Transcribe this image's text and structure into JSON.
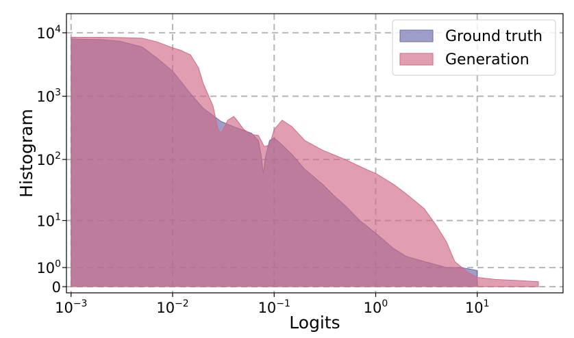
{
  "chart_data": {
    "type": "area",
    "title": "",
    "xlabel": "Logits",
    "ylabel": "Histogram",
    "x_scale": "log",
    "y_scale": "symlog",
    "xlim": [
      0.0009,
      70
    ],
    "ylim": [
      -0.25,
      20000
    ],
    "grid": true,
    "legend_position": "top-right",
    "x_ticks": [
      {
        "value": 0.001,
        "base": "10",
        "exp": "−3"
      },
      {
        "value": 0.01,
        "base": "10",
        "exp": "−2"
      },
      {
        "value": 0.1,
        "base": "10",
        "exp": "−1"
      },
      {
        "value": 1,
        "base": "10",
        "exp": "0"
      },
      {
        "value": 10,
        "base": "10",
        "exp": "1"
      }
    ],
    "y_ticks": [
      {
        "value": 0,
        "base": "0",
        "exp": ""
      },
      {
        "value": 1,
        "base": "10",
        "exp": "0"
      },
      {
        "value": 10,
        "base": "10",
        "exp": "1"
      },
      {
        "value": 100,
        "base": "10",
        "exp": "2"
      },
      {
        "value": 1000,
        "base": "10",
        "exp": "3"
      },
      {
        "value": 10000,
        "base": "10",
        "exp": "4"
      }
    ],
    "series": [
      {
        "name": "Ground truth",
        "color": "#6a6aaa",
        "opacity": 0.65,
        "points": [
          [
            0.001,
            8000
          ],
          [
            0.002,
            7800
          ],
          [
            0.003,
            7400
          ],
          [
            0.005,
            6000
          ],
          [
            0.007,
            4000
          ],
          [
            0.01,
            2500
          ],
          [
            0.015,
            1100
          ],
          [
            0.02,
            650
          ],
          [
            0.03,
            400
          ],
          [
            0.04,
            330
          ],
          [
            0.05,
            290
          ],
          [
            0.06,
            260
          ],
          [
            0.07,
            200
          ],
          [
            0.075,
            110
          ],
          [
            0.078,
            60
          ],
          [
            0.082,
            110
          ],
          [
            0.09,
            200
          ],
          [
            0.1,
            220
          ],
          [
            0.12,
            170
          ],
          [
            0.15,
            120
          ],
          [
            0.2,
            70
          ],
          [
            0.3,
            40
          ],
          [
            0.4,
            25
          ],
          [
            0.5,
            18
          ],
          [
            0.7,
            10
          ],
          [
            1.0,
            6
          ],
          [
            1.5,
            3
          ],
          [
            2.0,
            2
          ],
          [
            3.0,
            1.5
          ],
          [
            5.0,
            1
          ],
          [
            7.0,
            1
          ],
          [
            10.0,
            0.8
          ]
        ]
      },
      {
        "name": "Generation",
        "color": "#d06a85",
        "opacity": 0.65,
        "points": [
          [
            0.001,
            8500
          ],
          [
            0.002,
            8500
          ],
          [
            0.003,
            8400
          ],
          [
            0.005,
            8200
          ],
          [
            0.007,
            7200
          ],
          [
            0.01,
            5800
          ],
          [
            0.012,
            5300
          ],
          [
            0.015,
            4500
          ],
          [
            0.018,
            2800
          ],
          [
            0.02,
            1600
          ],
          [
            0.025,
            700
          ],
          [
            0.028,
            300
          ],
          [
            0.03,
            260
          ],
          [
            0.035,
            420
          ],
          [
            0.04,
            480
          ],
          [
            0.045,
            380
          ],
          [
            0.05,
            300
          ],
          [
            0.06,
            250
          ],
          [
            0.07,
            240
          ],
          [
            0.08,
            160
          ],
          [
            0.09,
            170
          ],
          [
            0.1,
            300
          ],
          [
            0.12,
            420
          ],
          [
            0.15,
            330
          ],
          [
            0.2,
            200
          ],
          [
            0.3,
            140
          ],
          [
            0.5,
            100
          ],
          [
            0.8,
            70
          ],
          [
            1.0,
            60
          ],
          [
            1.5,
            40
          ],
          [
            2.0,
            28
          ],
          [
            3.0,
            16
          ],
          [
            4.0,
            8
          ],
          [
            5.0,
            4
          ],
          [
            6.0,
            1.5
          ],
          [
            8.0,
            0.7
          ],
          [
            10.0,
            0.4
          ],
          [
            15.0,
            0.3
          ],
          [
            25.0,
            0.25
          ],
          [
            40.0,
            0.2
          ]
        ]
      }
    ]
  }
}
